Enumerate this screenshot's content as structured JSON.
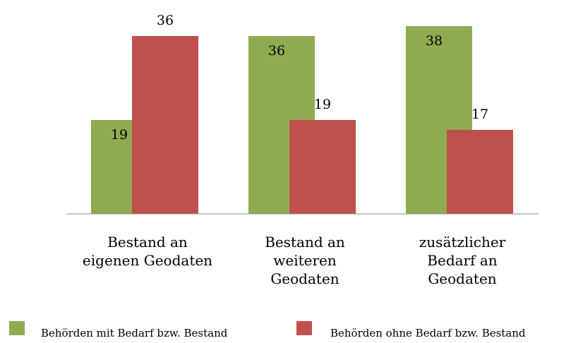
{
  "chart_data": {
    "type": "bar",
    "categories": [
      "Bestand an\neigenen Geodaten",
      "Bestand an\nweiteren\nGeodaten",
      "zusätzlicher\nBedarf an\nGeodaten"
    ],
    "series": [
      {
        "name": "Behörden mit Bedarf bzw. Bestand",
        "color": "#8fab52",
        "values": [
          19,
          36,
          38
        ]
      },
      {
        "name": "Behörden ohne Bedarf bzw. Bestand",
        "color": "#c0504d",
        "values": [
          36,
          19,
          17
        ]
      }
    ],
    "ylim": [
      0,
      40
    ]
  }
}
